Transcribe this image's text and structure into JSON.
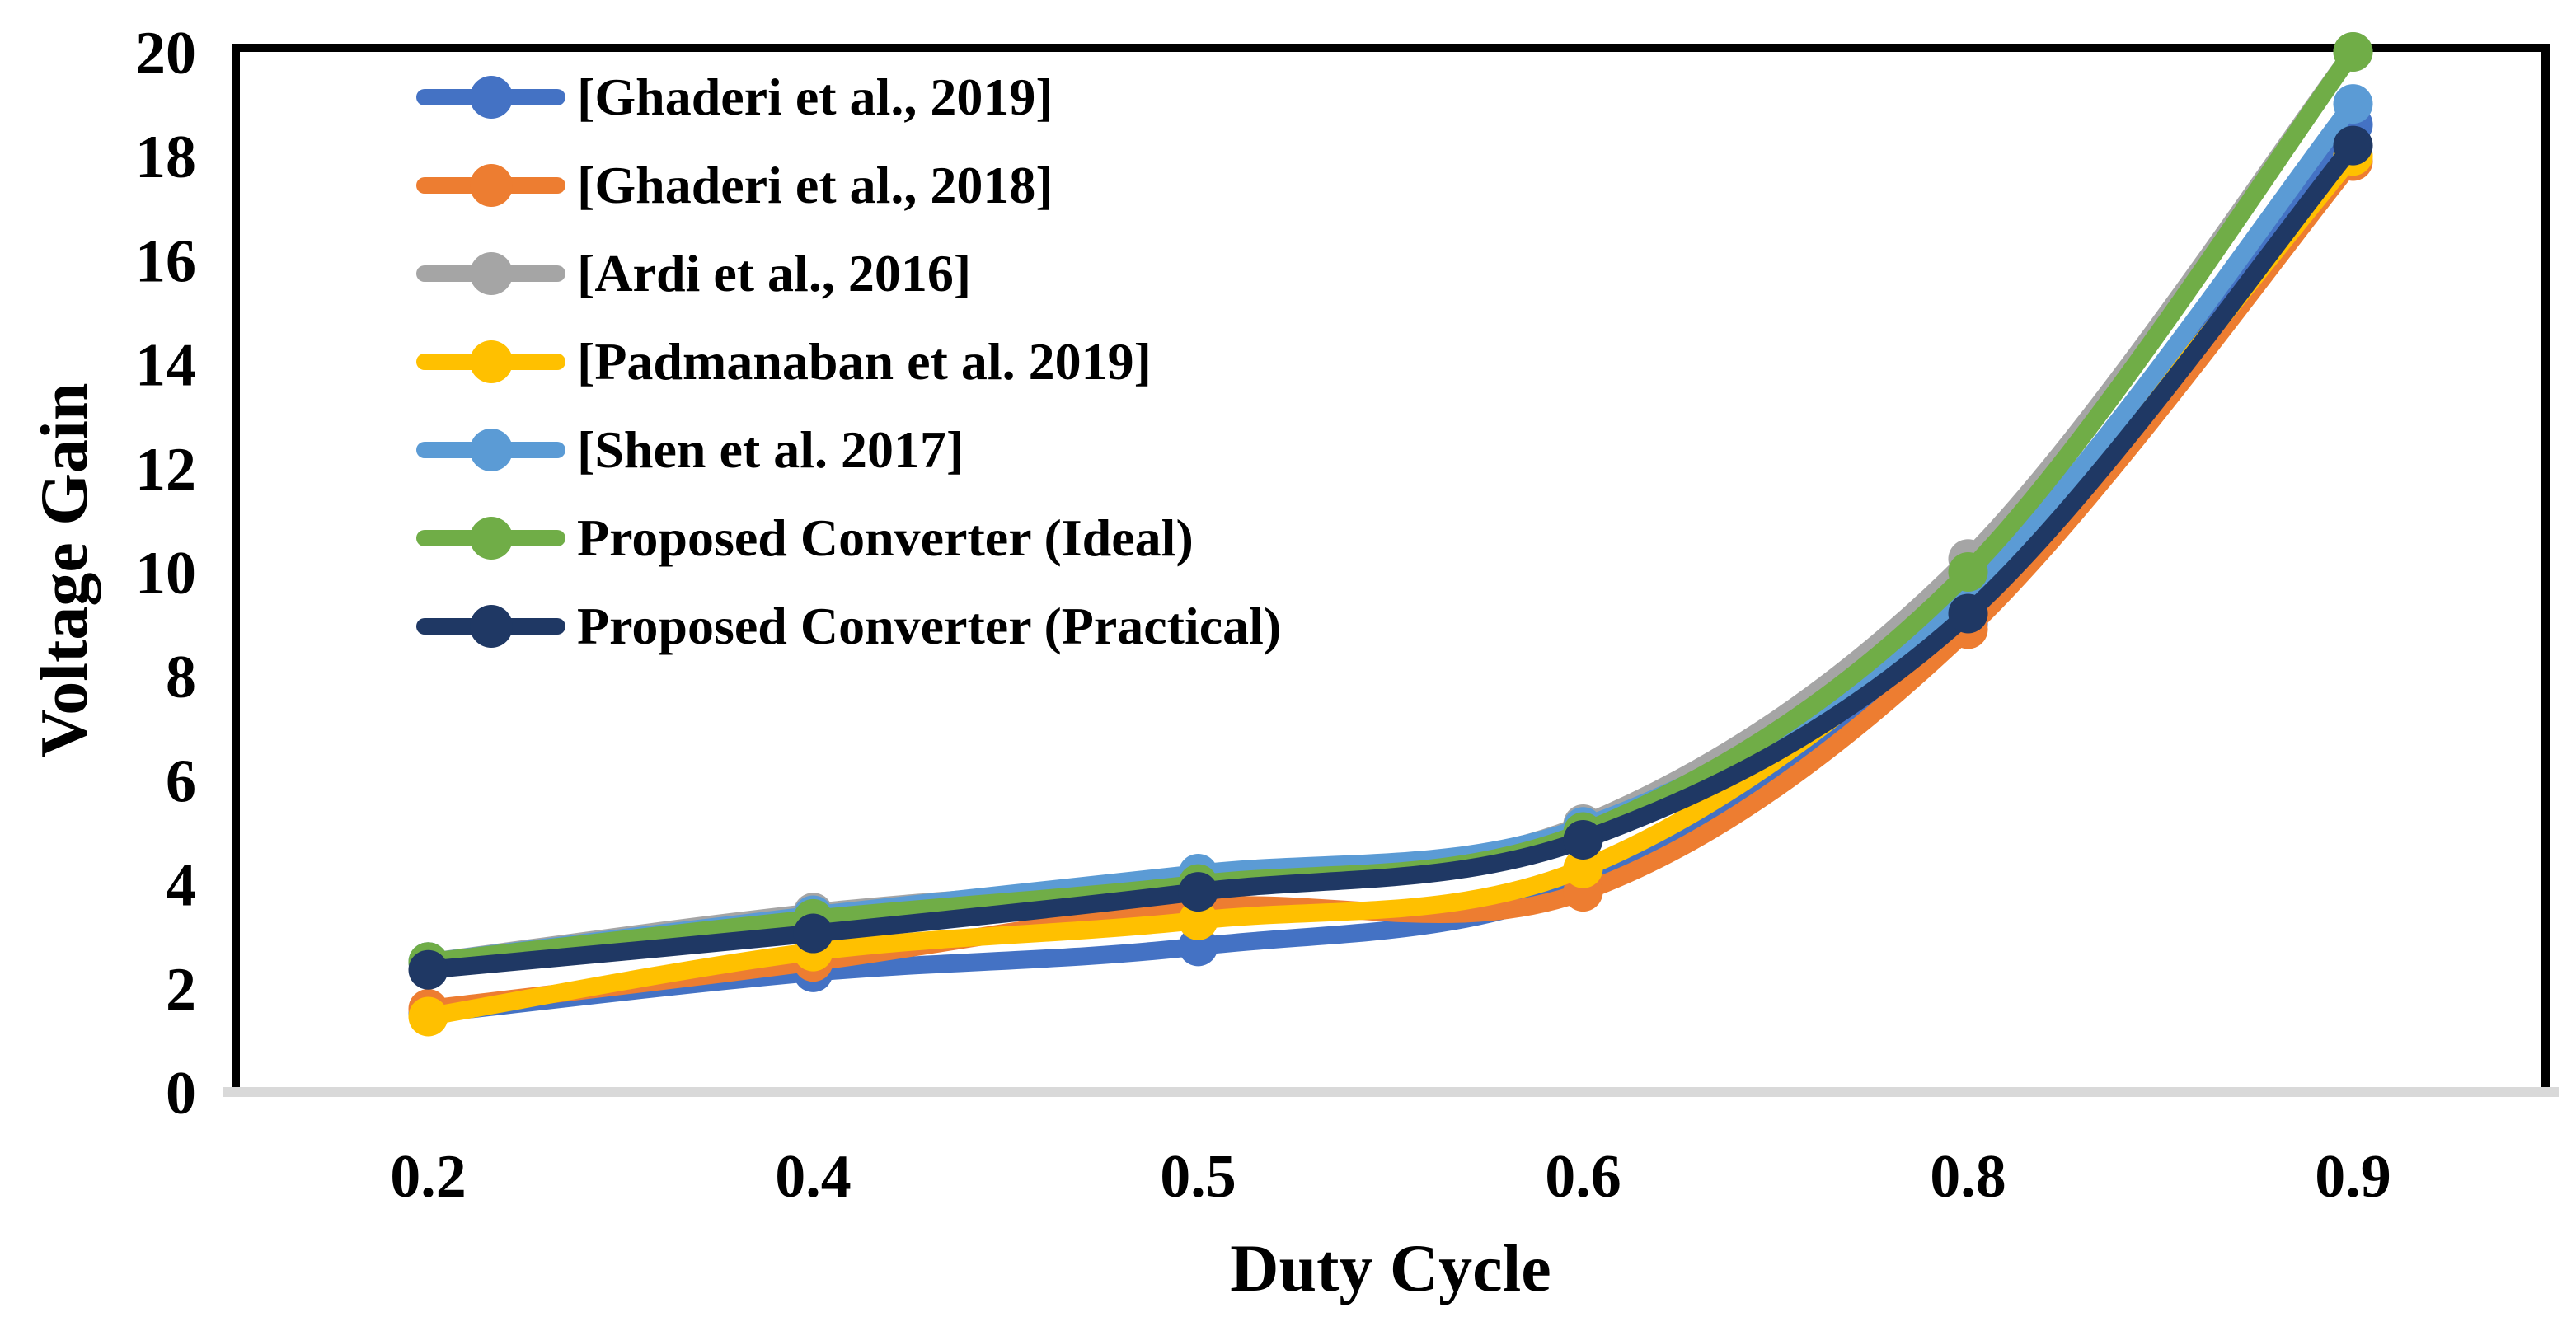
{
  "chart_data": {
    "type": "line",
    "title": "",
    "xlabel": "Duty Cycle",
    "ylabel": "Voltage Gain",
    "categories": [
      "0.2",
      "0.4",
      "0.5",
      "0.6",
      "0.8",
      "0.9"
    ],
    "y_ticks": [
      0,
      2,
      4,
      6,
      8,
      10,
      12,
      14,
      16,
      18,
      20
    ],
    "y_tick_labels": [
      "0",
      "2",
      "4",
      "6",
      "8",
      "10",
      "12",
      "14",
      "16",
      "18",
      "20"
    ],
    "ylim": [
      0,
      20
    ],
    "grid": false,
    "line_style": "smooth",
    "legend_position": "top-left-inside",
    "series": [
      {
        "name": "[Ghaderi et al., 2019]",
        "color": "#4472C4",
        "values": [
          1.5,
          2.3,
          2.8,
          4.0,
          9.0,
          18.6
        ]
      },
      {
        "name": "[Ghaderi et al., 2018]",
        "color": "#ED7D31",
        "values": [
          1.6,
          2.5,
          3.55,
          3.85,
          8.9,
          17.9
        ]
      },
      {
        "name": "[Ardi et al., 2016]",
        "color": "#A5A5A5",
        "values": [
          2.5,
          3.45,
          4.1,
          5.15,
          10.25,
          20.0
        ]
      },
      {
        "name": "[Padmanaban et al. 2019]",
        "color": "#FFC000",
        "values": [
          1.45,
          2.7,
          3.3,
          4.3,
          9.4,
          18.0
        ]
      },
      {
        "name": "[Shen et al. 2017]",
        "color": "#5B9BD5",
        "values": [
          2.5,
          3.4,
          4.2,
          5.1,
          9.6,
          19.0
        ]
      },
      {
        "name": "Proposed Converter (Ideal)",
        "color": "#70AD47",
        "values": [
          2.5,
          3.33,
          4.0,
          5.0,
          10.0,
          20.0
        ]
      },
      {
        "name": "Proposed Converter (Practical)",
        "color": "#1F3864",
        "values": [
          2.35,
          3.05,
          3.85,
          4.85,
          9.2,
          18.2
        ]
      }
    ],
    "plot_border_color": "#000000",
    "baseline_color": "#D9D9D9",
    "text_color": "#000000",
    "background_color": "#FFFFFF"
  }
}
